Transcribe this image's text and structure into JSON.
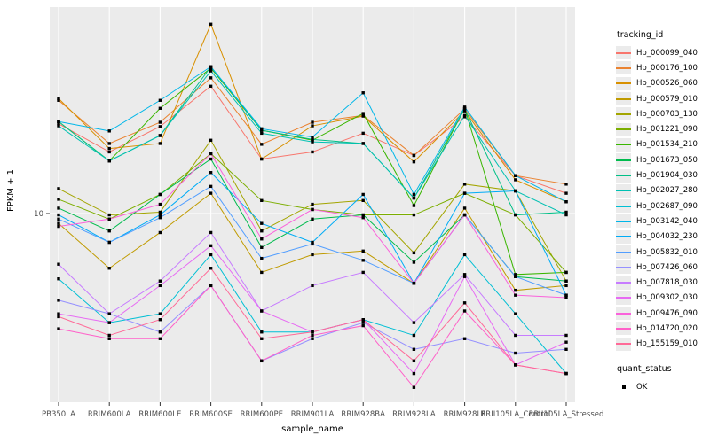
{
  "colors": {
    "panel_bg": "#ebebeb",
    "grid": "#ffffff",
    "axis_text": "#4d4d4d",
    "axis_title": "#000000",
    "tick_mark": "#333333",
    "point": "#000000",
    "background": "#ffffff"
  },
  "legend": {
    "tracking_title": "tracking_id",
    "quant_title": "quant_status",
    "quant_items": [
      {
        "label": "OK",
        "marker": "black-square"
      }
    ]
  },
  "chart_data": {
    "type": "line",
    "title": "",
    "xlabel": "sample_name",
    "ylabel": "FPKM + 1",
    "y_scale": "log10",
    "y_tick_label": "10",
    "y_tick_value": 10,
    "ylim_approx": [
      2.5,
      45
    ],
    "grid": "major-only",
    "marker": "black-square",
    "legend_position": "right",
    "x_categories": [
      "PB350LA",
      "RRIM600LA",
      "RRIM600LE",
      "RRIM600SE",
      "RRIM600PE",
      "RRIM901LA",
      "RRIM928BA",
      "RRIM928LA",
      "RRIM928LE",
      "RRII105LA_Control",
      "RRII105LA_Stressed"
    ],
    "series": [
      {
        "name": "Hb_000099_040",
        "color": "#F8766D",
        "values": [
          19.3,
          15.7,
          18.9,
          25.4,
          14.9,
          15.7,
          18.0,
          15.3,
          20.3,
          13.2,
          11.6
        ]
      },
      {
        "name": "Hb_000176_100",
        "color": "#EA8331",
        "values": [
          22.9,
          16.7,
          19.5,
          27.0,
          16.6,
          19.5,
          20.5,
          15.3,
          21.5,
          13.2,
          12.4
        ]
      },
      {
        "name": "Hb_000526_060",
        "color": "#D89000",
        "values": [
          23.2,
          16.1,
          16.7,
          40.0,
          14.9,
          19.0,
          20.4,
          14.6,
          21.2,
          12.8,
          10.9
        ]
      },
      {
        "name": "Hb_000579_010",
        "color": "#C09B00",
        "values": [
          9.3,
          6.7,
          8.7,
          11.6,
          6.5,
          7.4,
          7.6,
          6.0,
          10.4,
          5.7,
          5.9
        ]
      },
      {
        "name": "Hb_000703_130",
        "color": "#A3A500",
        "values": [
          12.0,
          9.9,
          10.1,
          17.1,
          8.8,
          10.7,
          11.0,
          7.5,
          12.4,
          11.8,
          6.1
        ]
      },
      {
        "name": "Hb_001221_090",
        "color": "#7CAE00",
        "values": [
          11.1,
          9.6,
          11.5,
          15.5,
          11.0,
          10.3,
          9.9,
          9.9,
          11.6,
          9.9,
          6.5
        ]
      },
      {
        "name": "Hb_001534_210",
        "color": "#39B600",
        "values": [
          19.6,
          14.7,
          21.6,
          29.0,
          18.4,
          17.1,
          20.8,
          10.6,
          21.6,
          6.4,
          6.5
        ]
      },
      {
        "name": "Hb_001673_050",
        "color": "#00BB4E",
        "values": [
          10.4,
          8.8,
          11.5,
          14.9,
          7.8,
          9.6,
          9.9,
          7.0,
          9.9,
          6.3,
          6.1
        ]
      },
      {
        "name": "Hb_001904_030",
        "color": "#00C087",
        "values": [
          19.6,
          14.7,
          17.7,
          29.3,
          18.4,
          17.2,
          16.7,
          11.2,
          21.5,
          9.9,
          10.1
        ]
      },
      {
        "name": "Hb_002027_280",
        "color": "#00C0B2",
        "values": [
          19.0,
          14.7,
          17.7,
          28.4,
          18.0,
          16.9,
          16.7,
          11.2,
          20.5,
          11.8,
          9.9
        ]
      },
      {
        "name": "Hb_002687_090",
        "color": "#00BFD4",
        "values": [
          6.2,
          4.5,
          4.8,
          7.4,
          4.2,
          4.2,
          4.6,
          4.1,
          7.4,
          4.8,
          3.1
        ]
      },
      {
        "name": "Hb_003142_040",
        "color": "#00B7E9",
        "values": [
          19.6,
          18.3,
          22.9,
          29.3,
          18.6,
          17.5,
          24.2,
          11.5,
          21.8,
          13.2,
          10.9
        ]
      },
      {
        "name": "Hb_004032_230",
        "color": "#00ACF6",
        "values": [
          9.9,
          8.1,
          9.9,
          13.5,
          9.3,
          8.1,
          11.5,
          6.0,
          11.6,
          11.8,
          5.5
        ]
      },
      {
        "name": "Hb_005832_010",
        "color": "#529EFF",
        "values": [
          9.6,
          8.1,
          9.7,
          12.2,
          7.2,
          8.0,
          7.1,
          6.0,
          9.9,
          6.3,
          5.5
        ]
      },
      {
        "name": "Hb_007426_060",
        "color": "#9590FF",
        "values": [
          5.3,
          4.8,
          4.2,
          5.9,
          3.4,
          4.0,
          4.5,
          3.7,
          4.0,
          3.6,
          3.7
        ]
      },
      {
        "name": "Hb_007818_030",
        "color": "#C77CFF",
        "values": [
          6.9,
          4.8,
          6.1,
          8.7,
          4.9,
          5.9,
          6.5,
          4.5,
          6.4,
          4.1,
          4.1
        ]
      },
      {
        "name": "Hb_009302_030",
        "color": "#E76BF3",
        "values": [
          4.8,
          4.5,
          5.9,
          7.9,
          4.9,
          4.2,
          4.6,
          3.1,
          6.3,
          3.3,
          3.9
        ]
      },
      {
        "name": "Hb_009476_090",
        "color": "#FA62DB",
        "values": [
          9.1,
          9.6,
          10.7,
          15.5,
          8.3,
          10.3,
          9.7,
          6.0,
          9.9,
          5.5,
          5.4
        ]
      },
      {
        "name": "Hb_014720_020",
        "color": "#FF61C9",
        "values": [
          4.3,
          4.0,
          4.0,
          5.9,
          3.4,
          4.1,
          4.4,
          2.8,
          4.9,
          3.3,
          3.1
        ]
      },
      {
        "name": "Hb_155159_010",
        "color": "#FF6A98",
        "values": [
          4.7,
          4.1,
          4.6,
          6.7,
          4.0,
          4.2,
          4.6,
          3.4,
          5.2,
          3.3,
          3.1
        ]
      }
    ]
  }
}
